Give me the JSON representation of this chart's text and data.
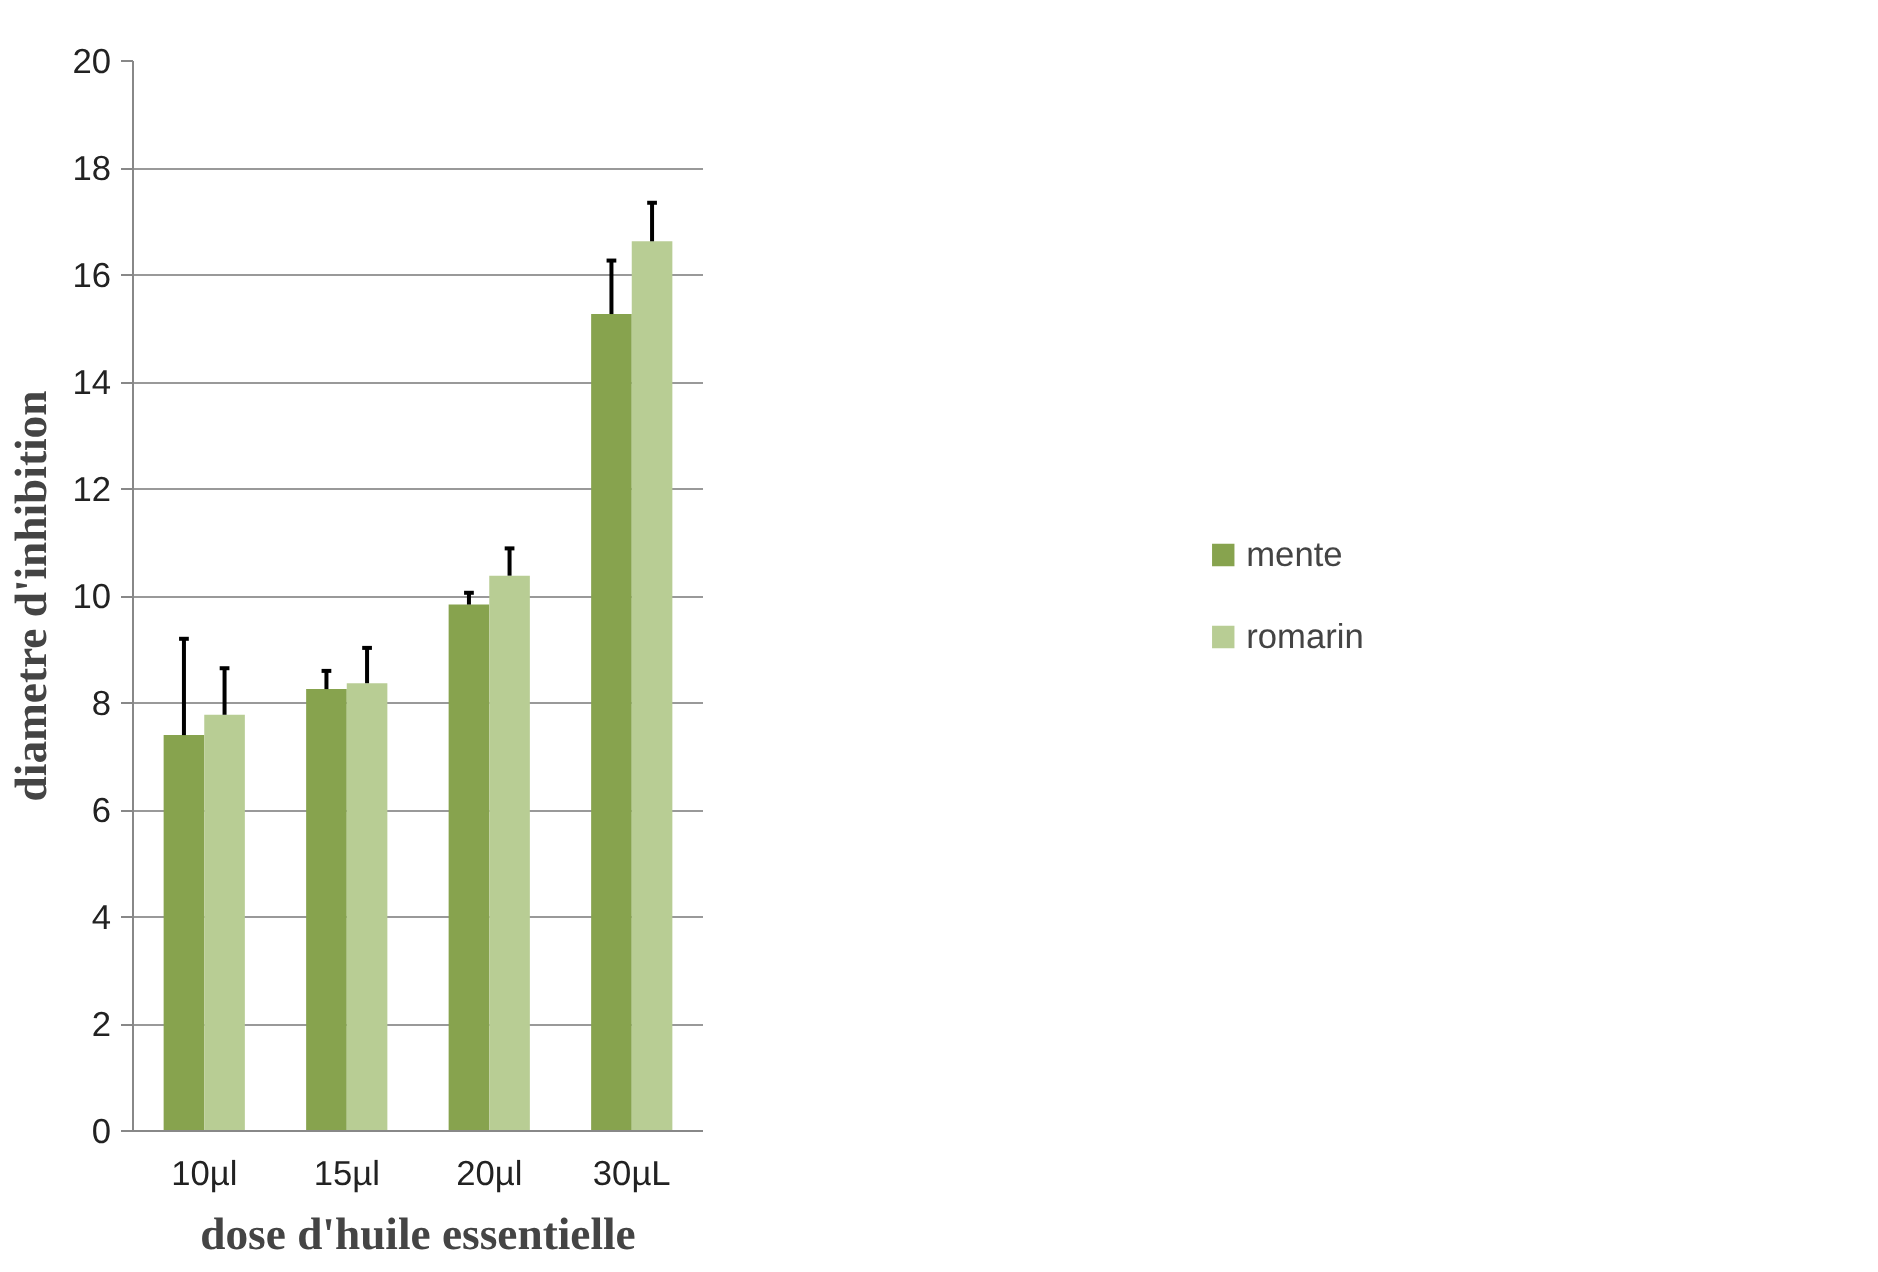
{
  "chart_data": {
    "type": "bar",
    "xlabel": "dose d'huile essentielle",
    "ylabel": "diametre d'inhibition",
    "categories": [
      "10µl",
      "15µl",
      "20µl",
      "30µL"
    ],
    "series": [
      {
        "name": "mente",
        "color": "#87a34e",
        "values": [
          7.4,
          8.26,
          9.84,
          15.27
        ],
        "errors": [
          [
            7.4,
            9.2
          ],
          [
            8.26,
            8.6
          ],
          [
            9.84,
            10.06
          ],
          [
            15.27,
            16.27
          ]
        ]
      },
      {
        "name": "romarin",
        "color": "#b8cd94",
        "values": [
          7.78,
          8.37,
          10.38,
          16.63
        ],
        "errors": [
          [
            7.78,
            8.65
          ],
          [
            8.37,
            9.03
          ],
          [
            10.38,
            10.89
          ],
          [
            16.63,
            17.35
          ]
        ]
      }
    ],
    "ylim": [
      0,
      20
    ],
    "yticks": [
      0,
      2,
      4,
      6,
      8,
      10,
      12,
      14,
      16,
      18,
      20
    ],
    "grid": "y",
    "legend": "right"
  }
}
